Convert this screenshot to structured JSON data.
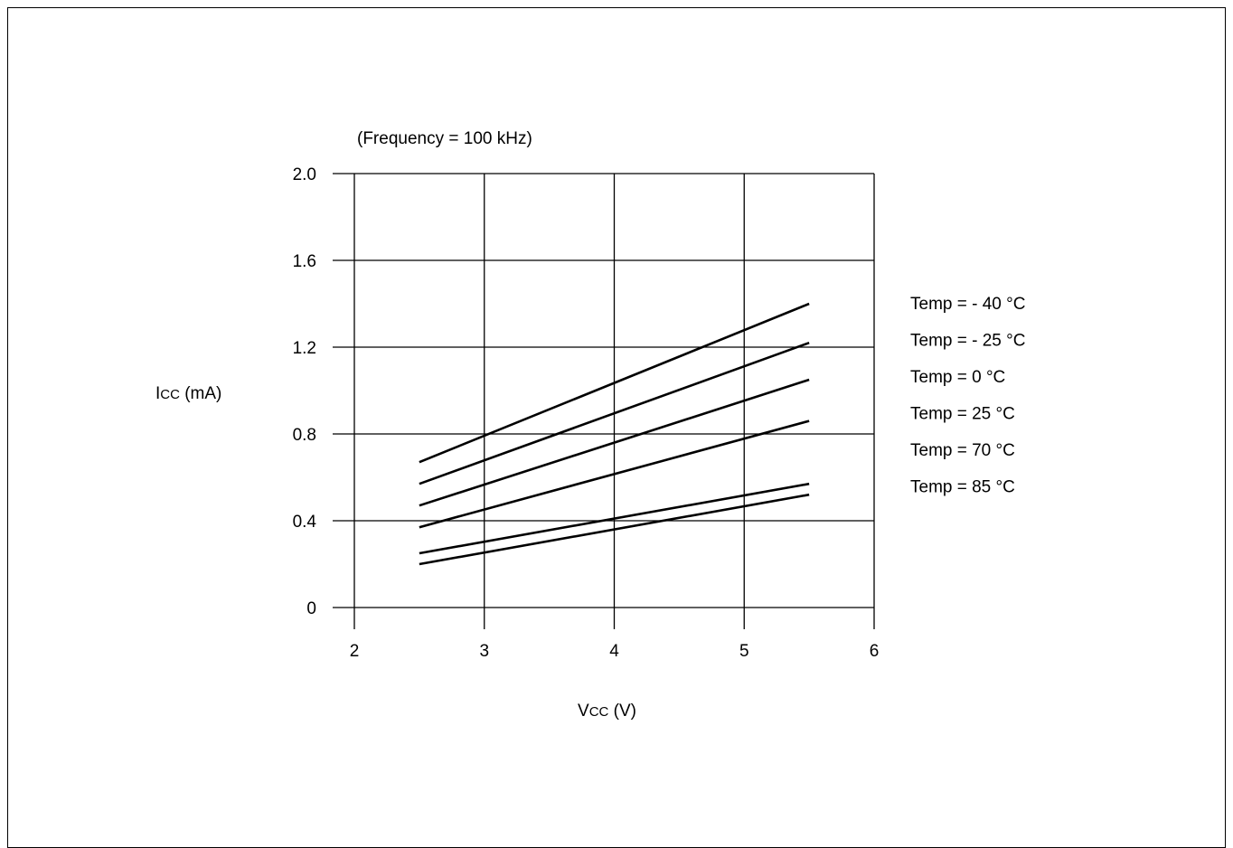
{
  "chart_data": {
    "type": "line",
    "subtitle": "(Frequency = 100 kHz)",
    "ylabel_main": "I",
    "ylabel_sub": "CC",
    "ylabel_unit": " (mA)",
    "xlabel_main": "V",
    "xlabel_sub": "CC",
    "xlabel_unit": " (V)",
    "xlim": [
      2,
      6
    ],
    "ylim": [
      0,
      2.0
    ],
    "x_ticks": [
      "2",
      "3",
      "4",
      "5",
      "6"
    ],
    "y_ticks": [
      "0",
      "0.4",
      "0.8",
      "1.2",
      "1.6",
      "2.0"
    ],
    "grid": true,
    "legend_position": "right",
    "series": [
      {
        "name": "Temp = - 40 °C",
        "x": [
          2.5,
          5.5
        ],
        "y": [
          0.67,
          1.4
        ]
      },
      {
        "name": "Temp = - 25 °C",
        "x": [
          2.5,
          5.5
        ],
        "y": [
          0.57,
          1.22
        ]
      },
      {
        "name": "Temp = 0 °C",
        "x": [
          2.5,
          5.5
        ],
        "y": [
          0.47,
          1.05
        ]
      },
      {
        "name": "Temp = 25 °C",
        "x": [
          2.5,
          5.5
        ],
        "y": [
          0.37,
          0.86
        ]
      },
      {
        "name": "Temp = 70 °C",
        "x": [
          2.5,
          5.5
        ],
        "y": [
          0.25,
          0.57
        ]
      },
      {
        "name": "Temp = 85 °C",
        "x": [
          2.5,
          5.5
        ],
        "y": [
          0.2,
          0.52
        ]
      }
    ]
  }
}
